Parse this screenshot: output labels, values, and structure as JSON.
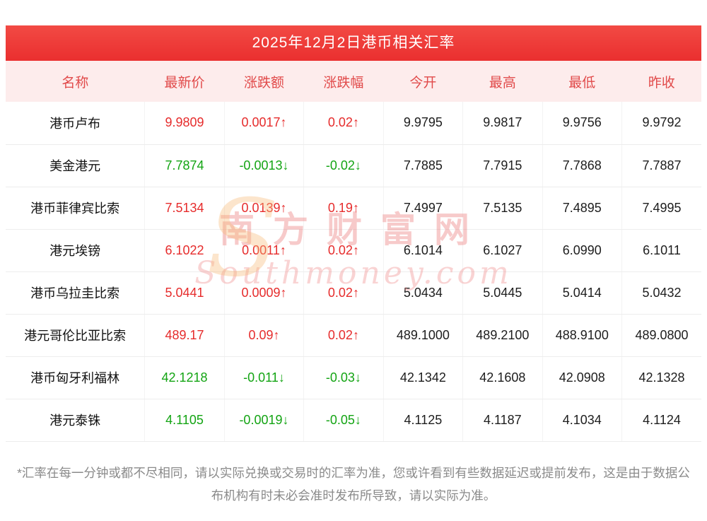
{
  "title": "2025年12月2日港币相关汇率",
  "table": {
    "headers": [
      "名称",
      "最新价",
      "涨跌额",
      "涨跌幅",
      "今开",
      "最高",
      "最低",
      "昨收"
    ],
    "rows": [
      {
        "name": "港币卢布",
        "latest": "9.9809",
        "change": "0.0017↑",
        "change_pct": "0.02↑",
        "open": "9.9795",
        "high": "9.9817",
        "low": "9.9756",
        "prev_close": "9.9792",
        "trend": "up"
      },
      {
        "name": "美金港元",
        "latest": "7.7874",
        "change": "-0.0013↓",
        "change_pct": "-0.02↓",
        "open": "7.7885",
        "high": "7.7915",
        "low": "7.7868",
        "prev_close": "7.7887",
        "trend": "down"
      },
      {
        "name": "港币菲律宾比索",
        "latest": "7.5134",
        "change": "0.0139↑",
        "change_pct": "0.19↑",
        "open": "7.4997",
        "high": "7.5135",
        "low": "7.4895",
        "prev_close": "7.4995",
        "trend": "up"
      },
      {
        "name": "港元埃镑",
        "latest": "6.1022",
        "change": "0.0011↑",
        "change_pct": "0.02↑",
        "open": "6.1014",
        "high": "6.1027",
        "low": "6.0990",
        "prev_close": "6.1011",
        "trend": "up"
      },
      {
        "name": "港币乌拉圭比索",
        "latest": "5.0441",
        "change": "0.0009↑",
        "change_pct": "0.02↑",
        "open": "5.0434",
        "high": "5.0445",
        "low": "5.0414",
        "prev_close": "5.0432",
        "trend": "up"
      },
      {
        "name": "港元哥伦比亚比索",
        "latest": "489.17",
        "change": "0.09↑",
        "change_pct": "0.02↑",
        "open": "489.1000",
        "high": "489.2100",
        "low": "488.9100",
        "prev_close": "489.0800",
        "trend": "up"
      },
      {
        "name": "港币匈牙利福林",
        "latest": "42.1218",
        "change": "-0.011↓",
        "change_pct": "-0.03↓",
        "open": "42.1342",
        "high": "42.1608",
        "low": "42.0908",
        "prev_close": "42.1328",
        "trend": "down"
      },
      {
        "name": "港元泰铢",
        "latest": "4.1105",
        "change": "-0.0019↓",
        "change_pct": "-0.05↓",
        "open": "4.1125",
        "high": "4.1187",
        "low": "4.1034",
        "prev_close": "4.1124",
        "trend": "down"
      }
    ]
  },
  "watermark": {
    "logo_letter": "S",
    "cn": "南方财富网",
    "en": "Southmoney.com"
  },
  "footnote": "*汇率在每一分钟或都不尽相同，请以实际兑换或交易时的汇率为准，您或许看到有些数据延迟或提前发布，这是由于数据公布机构有时未必会准时发布所导致，请以实际为准。",
  "colors": {
    "banner_red": "#ea2f2f",
    "up_red": "#e62c2c",
    "down_green": "#13a413",
    "header_bg": "#fdecec",
    "header_text": "#e14a4a",
    "watermark_pink": "#ec8080",
    "watermark_orange": "#f7ba78"
  }
}
